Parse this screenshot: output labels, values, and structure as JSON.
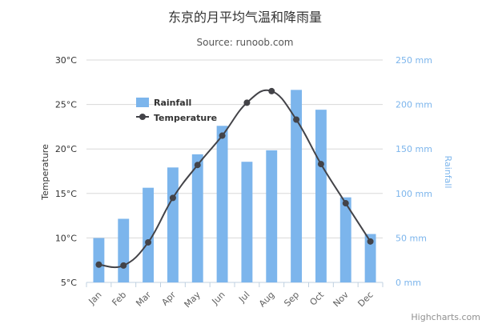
{
  "chart_data": {
    "type": "bar",
    "title": "东京的月平均气温和降雨量",
    "subtitle": "Source: runoob.com",
    "categories": [
      "Jan",
      "Feb",
      "Mar",
      "Apr",
      "May",
      "Jun",
      "Jul",
      "Aug",
      "Sep",
      "Oct",
      "Nov",
      "Dec"
    ],
    "series": [
      {
        "name": "Rainfall",
        "type": "bar",
        "axis": "right",
        "color": "#7cb5ec",
        "values": [
          49.9,
          71.5,
          106.4,
          129.2,
          144.0,
          176.0,
          135.6,
          148.5,
          216.4,
          194.1,
          95.6,
          54.4
        ]
      },
      {
        "name": "Temperature",
        "type": "line",
        "axis": "left",
        "color": "#434348",
        "values": [
          7.0,
          6.9,
          9.5,
          14.5,
          18.2,
          21.5,
          25.2,
          26.5,
          23.3,
          18.3,
          13.9,
          9.6
        ]
      }
    ],
    "left_axis": {
      "label": "Temperature",
      "min": 5,
      "max": 30,
      "ticks": [
        "5°C",
        "10°C",
        "15°C",
        "20°C",
        "25°C",
        "30°C"
      ]
    },
    "right_axis": {
      "label": "Rainfall",
      "min": 0,
      "max": 250,
      "ticks": [
        "0 mm",
        "50 mm",
        "100 mm",
        "150 mm",
        "200 mm",
        "250 mm"
      ]
    },
    "grid": true,
    "legend": {
      "placement": "top-left-inside"
    },
    "credits": "Highcharts.com"
  }
}
